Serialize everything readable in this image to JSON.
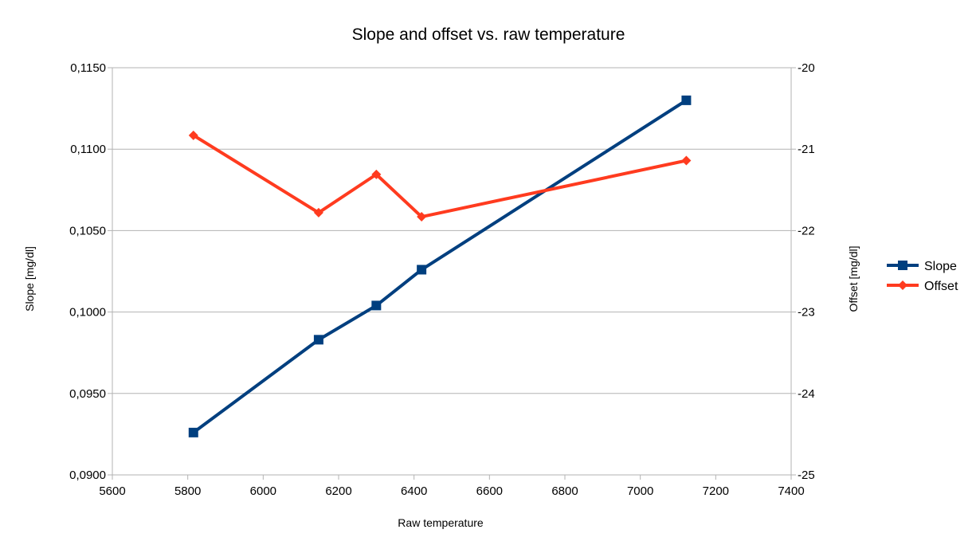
{
  "chart_data": {
    "type": "line",
    "title": "Slope and offset vs. raw temperature",
    "xlabel": "Raw temperature",
    "ylabel": "Slope [mg/dl]",
    "y2label": "Offset [mg/dl]",
    "xlim": [
      5600,
      7400
    ],
    "ylim": [
      0.09,
      0.115
    ],
    "y2lim": [
      -25,
      -20
    ],
    "x_ticks": [
      "5600",
      "5800",
      "6000",
      "6200",
      "6400",
      "6600",
      "6800",
      "7000",
      "7200",
      "7400"
    ],
    "y_ticks": [
      "0,0900",
      "0,0950",
      "0,1000",
      "0,1050",
      "0,1100",
      "0,1150"
    ],
    "y2_ticks": [
      "-25",
      "-24",
      "-23",
      "-22",
      "-21",
      "-20"
    ],
    "grid": true,
    "legend_position": "right",
    "series": [
      {
        "name": "Slope",
        "axis": "left",
        "color": "#003f7f",
        "marker": "square",
        "x": [
          5815,
          6147,
          6300,
          6420,
          7122
        ],
        "y": [
          0.0926,
          0.0983,
          0.1004,
          0.1026,
          0.113
        ]
      },
      {
        "name": "Offset",
        "axis": "right",
        "color": "#ff3b1f",
        "marker": "diamond",
        "x": [
          5815,
          6147,
          6300,
          6420,
          7122
        ],
        "y": [
          -20.83,
          -21.78,
          -21.31,
          -21.83,
          -21.14
        ]
      }
    ]
  }
}
